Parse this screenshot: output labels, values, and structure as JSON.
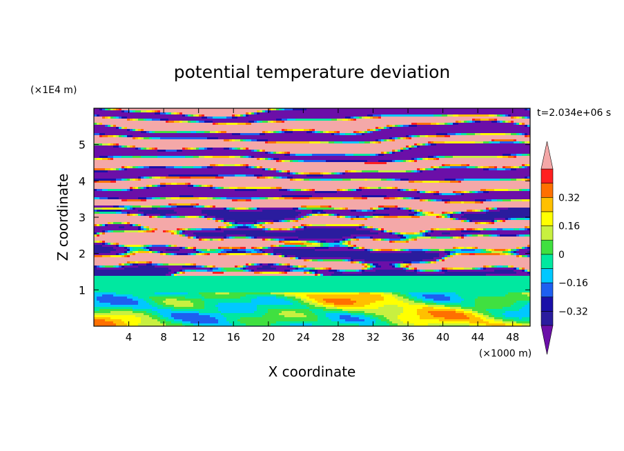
{
  "chart_data": {
    "type": "heatmap",
    "title": "potential temperature deviation",
    "xlabel": "X coordinate",
    "ylabel": "Z coordinate",
    "x_unit": "(×1000 m)",
    "y_unit": "(×1E4 m)",
    "time_label": "t=2.034e+06 s",
    "xlim": [
      0,
      50
    ],
    "ylim": [
      0,
      6
    ],
    "x_ticks": [
      "4",
      "8",
      "12",
      "16",
      "20",
      "24",
      "28",
      "32",
      "36",
      "40",
      "44",
      "48"
    ],
    "y_ticks": [
      "1",
      "2",
      "3",
      "4",
      "5"
    ],
    "x_tick_values": [
      4,
      8,
      12,
      16,
      20,
      24,
      28,
      32,
      36,
      40,
      44,
      48
    ],
    "y_tick_values": [
      1,
      2,
      3,
      4,
      5
    ],
    "colorbar": {
      "levels": [
        -0.48,
        -0.4,
        -0.32,
        -0.24,
        -0.16,
        -0.08,
        0,
        0.08,
        0.16,
        0.24,
        0.32,
        0.4,
        0.48
      ],
      "colors": [
        "#6b0fa8",
        "#2a1c9e",
        "#1a10a8",
        "#1e5ff0",
        "#00c8ff",
        "#00e8a0",
        "#40e040",
        "#c8f040",
        "#ffff00",
        "#ffc000",
        "#ff7000",
        "#ff2020",
        "#f4a8a8"
      ],
      "label_values": [
        0.32,
        0.16,
        0,
        -0.16,
        -0.32
      ],
      "labels": [
        "0.32",
        "0.16",
        "0",
        "−0.16",
        "−0.32"
      ]
    }
  }
}
